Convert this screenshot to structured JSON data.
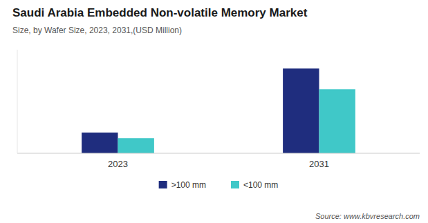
{
  "chart_data": {
    "type": "bar",
    "title": "Saudi Arabia Embedded Non-volatile Memory Market",
    "subtitle": "Size, by Wafer Size, 2023, 2031,(USD Million)",
    "categories": [
      "2023",
      "2031"
    ],
    "series": [
      {
        "name": ">100 mm",
        "values": [
          22,
          90
        ],
        "color": "#1f2d7e"
      },
      {
        "name": "<100 mm",
        "values": [
          16,
          68
        ],
        "color": "#40c8c8"
      }
    ],
    "ylim": [
      0,
      110
    ],
    "grid": false,
    "legend": "bottom",
    "tick_labels": "x",
    "source": "Source: www.kbvresearch.com"
  }
}
